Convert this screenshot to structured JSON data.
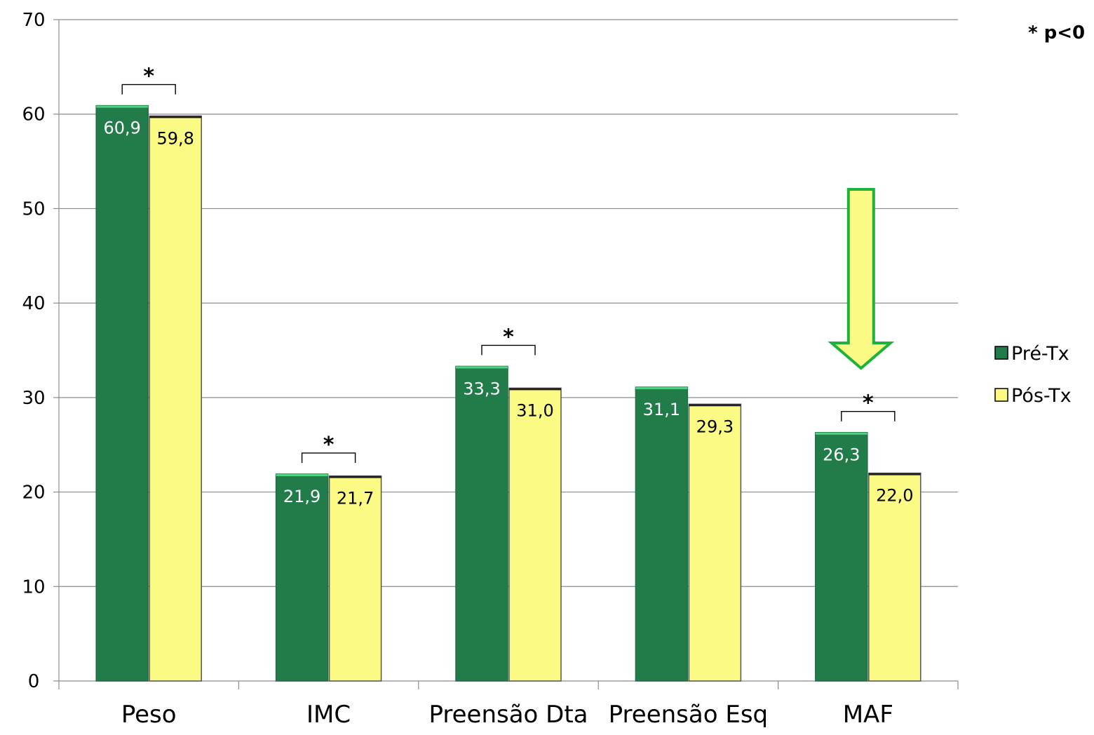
{
  "chart_data": {
    "type": "bar",
    "categories": [
      "Peso",
      "IMC",
      "Preensão Dta",
      "Preensão Esq",
      "MAF"
    ],
    "series": [
      {
        "name": "Pré-Tx",
        "values": [
          60.9,
          21.9,
          33.3,
          31.1,
          26.3
        ],
        "labels": [
          "60,9",
          "21,9",
          "33,3",
          "31,1",
          "26,3"
        ],
        "color": "#217c4a",
        "label_color": "#ffffff"
      },
      {
        "name": "Pós-Tx",
        "values": [
          59.8,
          21.7,
          31.0,
          29.3,
          22.0
        ],
        "labels": [
          "59,8",
          "21,7",
          "31,0",
          "29,3",
          "22,0"
        ],
        "color": "#fafa84",
        "label_color": "#000000"
      }
    ],
    "ylim": [
      0,
      70
    ],
    "yticks": [
      "0",
      "10",
      "20",
      "30",
      "40",
      "50",
      "60",
      "70"
    ],
    "significant": [
      true,
      true,
      true,
      false,
      true
    ],
    "significance_mark": "*",
    "significance_note": "* p<0",
    "highlight_arrow_category": "MAF",
    "arrow_fill": "#fafa84",
    "arrow_stroke": "#1db23c",
    "grid": true,
    "legend_position": "right",
    "xlabel": "",
    "ylabel": "",
    "title": ""
  }
}
